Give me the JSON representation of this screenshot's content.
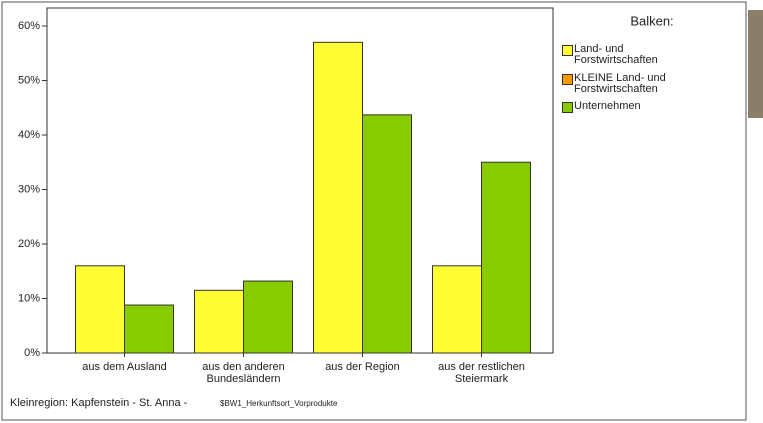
{
  "chart_data": {
    "type": "bar",
    "categories": [
      "aus dem Ausland",
      "aus den anderen Bundesländern",
      "aus der Region",
      "aus der restlichen Steiermark"
    ],
    "series": [
      {
        "name": "Land- und Forstwirtschaften",
        "color": "#ffff33",
        "values": [
          16,
          11.5,
          57,
          16
        ]
      },
      {
        "name": "KLEINE Land- und Forstwirtschaften",
        "color": "#ff9900",
        "values": [
          null,
          null,
          null,
          null
        ]
      },
      {
        "name": "Unternehmen",
        "color": "#88cc00",
        "values": [
          8.8,
          13.2,
          43.7,
          35
        ]
      }
    ],
    "ylim": [
      0,
      63.3
    ],
    "yticks": [
      {
        "value": 0,
        "label": "0%"
      },
      {
        "value": 10,
        "label": "10%"
      },
      {
        "value": 20,
        "label": "20%"
      },
      {
        "value": 30,
        "label": "30%"
      },
      {
        "value": 40,
        "label": "40%"
      },
      {
        "value": 50,
        "label": "50%"
      },
      {
        "value": 60,
        "label": "60%"
      }
    ],
    "legend_title": "Balken:",
    "footer": "Kleinregion: Kapfenstein - St. Anna -",
    "footer_variable": "$BW1_Herkunftsort_Vorprodukte"
  }
}
